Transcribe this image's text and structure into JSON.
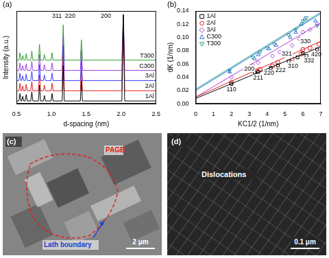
{
  "chart_data": [
    {
      "type": "line",
      "title": "(a)",
      "x_label": "d-spacing (nm)",
      "y_label": "Intensity (a.u.)",
      "x": [
        0.5,
        0.535,
        0.55,
        0.565,
        0.575,
        0.59,
        0.605,
        0.625,
        0.64,
        0.655,
        0.705,
        0.72,
        0.735,
        0.815,
        0.83,
        0.845,
        0.885,
        0.9,
        0.915,
        0.995,
        1.01,
        1.025,
        1.155,
        1.17,
        1.185,
        1.415,
        1.43,
        1.445,
        2.01,
        2.03,
        2.05,
        2.5
      ],
      "series": [
        {
          "name": "1Al",
          "color": "#000000",
          "values": [
            0.03,
            0.03,
            0.11,
            0.03,
            0.03,
            0.08,
            0.03,
            0.03,
            0.1,
            0.03,
            0.03,
            0.13,
            0.03,
            0.03,
            0.2,
            0.03,
            0.03,
            0.09,
            0.03,
            0.03,
            0.11,
            0.03,
            0.03,
            0.41,
            0.03,
            0.03,
            0.25,
            0.03,
            0.03,
            0.96,
            0.03,
            0.03
          ]
        },
        {
          "name": "2Al",
          "color": "#e41a1c",
          "values": [
            0.14,
            0.14,
            0.22,
            0.14,
            0.14,
            0.19,
            0.14,
            0.14,
            0.21,
            0.14,
            0.14,
            0.24,
            0.14,
            0.14,
            0.31,
            0.14,
            0.14,
            0.2,
            0.14,
            0.14,
            0.22,
            0.14,
            0.14,
            0.52,
            0.14,
            0.14,
            0.36,
            0.14,
            0.14,
            0.96,
            0.14,
            0.14
          ]
        },
        {
          "name": "3Al",
          "color": "#3a3aff",
          "values": [
            0.25,
            0.25,
            0.33,
            0.25,
            0.25,
            0.3,
            0.25,
            0.25,
            0.32,
            0.25,
            0.25,
            0.35,
            0.25,
            0.25,
            0.42,
            0.25,
            0.25,
            0.31,
            0.25,
            0.25,
            0.33,
            0.25,
            0.25,
            0.63,
            0.25,
            0.25,
            0.47,
            0.25,
            0.25,
            0.96,
            0.25,
            0.25
          ]
        },
        {
          "name": "C300",
          "color": "#a040e0",
          "values": [
            0.36,
            0.36,
            0.44,
            0.36,
            0.36,
            0.41,
            0.36,
            0.36,
            0.43,
            0.36,
            0.36,
            0.46,
            0.36,
            0.36,
            0.53,
            0.36,
            0.36,
            0.42,
            0.36,
            0.36,
            0.44,
            0.36,
            0.36,
            0.74,
            0.36,
            0.36,
            0.58,
            0.36,
            0.36,
            0.96,
            0.36,
            0.36
          ]
        },
        {
          "name": "T300",
          "color": "#2ca02c",
          "values": [
            0.47,
            0.47,
            0.55,
            0.47,
            0.47,
            0.52,
            0.47,
            0.47,
            0.54,
            0.47,
            0.47,
            0.57,
            0.47,
            0.47,
            0.64,
            0.47,
            0.47,
            0.53,
            0.47,
            0.47,
            0.55,
            0.47,
            0.47,
            0.85,
            0.47,
            0.47,
            0.69,
            0.47,
            0.47,
            0.96,
            0.47,
            0.47
          ]
        }
      ],
      "annotations": [
        {
          "text": "311",
          "x": 1.08
        },
        {
          "text": "220",
          "x": 1.27
        },
        {
          "text": "200",
          "x": 1.78
        }
      ],
      "xlim": [
        0.5,
        2.5
      ],
      "xticks": [
        0.5,
        {
          "value": 1,
          "label": "1.0"
        },
        1.5,
        {
          "value": 2,
          "label": "2.0"
        },
        2.5
      ],
      "ylim": [
        0,
        1
      ],
      "grid": false,
      "tick_labels": "x"
    },
    {
      "type": "scatter",
      "title": "(b)",
      "x_label": "KC1/2 (1/nm)",
      "y_label": "dK (1/nm)",
      "series": [
        {
          "name": "1Al",
          "color": "#000000",
          "marker": "square",
          "x": [
            2.0,
            3.3,
            3.5,
            4.2,
            4.6,
            5.2,
            5.7,
            6.0,
            6.2,
            6.8
          ],
          "values": [
            0.03,
            0.047,
            0.048,
            0.054,
            0.058,
            0.064,
            0.07,
            0.076,
            0.072,
            0.082
          ],
          "fit": {
            "x": [
              0,
              7
            ],
            "values": [
              0.008,
              0.086
            ]
          }
        },
        {
          "name": "2Al",
          "color": "#e41a1c",
          "marker": "circle",
          "x": [
            2.0,
            3.4,
            3.6,
            4.3,
            4.6,
            5.4,
            5.9,
            6.0,
            6.4,
            6.9
          ],
          "values": [
            0.032,
            0.05,
            0.052,
            0.057,
            0.062,
            0.068,
            0.075,
            0.082,
            0.084,
            0.09
          ],
          "fit": {
            "x": [
              0,
              7
            ],
            "values": [
              0.01,
              0.094
            ]
          }
        },
        {
          "name": "3Al",
          "color": "#b040d0",
          "marker": "diamond",
          "x": [
            2.0,
            3.2,
            3.5,
            4.3,
            4.7,
            5.4,
            5.8,
            6.0,
            6.4,
            6.8
          ],
          "values": [
            0.04,
            0.058,
            0.062,
            0.072,
            0.078,
            0.088,
            0.098,
            0.108,
            0.112,
            0.12
          ],
          "fit": {
            "x": [
              0,
              7
            ],
            "values": [
              0.01,
              0.122
            ]
          }
        },
        {
          "name": "C300",
          "color": "#2a6fd6",
          "marker": "triangle",
          "x": [
            1.9,
            3.3,
            3.5,
            4.1,
            4.5,
            5.3,
            5.6,
            5.9,
            6.1,
            6.7
          ],
          "values": [
            0.048,
            0.068,
            0.074,
            0.083,
            0.088,
            0.1,
            0.108,
            0.12,
            0.128,
            0.125
          ],
          "fit": {
            "x": [
              0,
              7
            ],
            "values": [
              0.02,
              0.136
            ]
          }
        },
        {
          "name": "T300",
          "color": "#1a9e8a",
          "marker": "triangle-down",
          "x": [
            1.9,
            3.2,
            3.6,
            4.0,
            4.4,
            5.2,
            5.6,
            6.0,
            6.2,
            6.8
          ],
          "values": [
            0.05,
            0.07,
            0.078,
            0.084,
            0.09,
            0.104,
            0.112,
            0.125,
            0.13,
            0.118
          ],
          "fit": {
            "x": [
              0,
              7
            ],
            "values": [
              0.022,
              0.138
            ]
          }
        }
      ],
      "annotations": [
        {
          "text": "110",
          "x": 2.0,
          "y": 0.021
        },
        {
          "text": "200",
          "x": 3.0,
          "y": 0.053
        },
        {
          "text": "211",
          "x": 3.5,
          "y": 0.039
        },
        {
          "text": "220",
          "x": 4.1,
          "y": 0.046
        },
        {
          "text": "222",
          "x": 4.75,
          "y": 0.05
        },
        {
          "text": "310",
          "x": 5.45,
          "y": 0.057
        },
        {
          "text": "321",
          "x": 5.1,
          "y": 0.075
        },
        {
          "text": "330",
          "x": 6.15,
          "y": 0.094
        },
        {
          "text": "332",
          "x": 6.35,
          "y": 0.065
        },
        {
          "text": "420",
          "x": 6.75,
          "y": 0.074
        }
      ],
      "xlim": [
        0,
        7
      ],
      "xticks": [
        0,
        1,
        2,
        3,
        4,
        5,
        6,
        7
      ],
      "ylim": [
        0,
        0.14
      ],
      "yticks": [
        {
          "value": 0,
          "label": "0.00"
        },
        0.02,
        0.04,
        0.06,
        0.08,
        {
          "value": 0.1,
          "label": "0.10"
        },
        0.12,
        0.14
      ],
      "grid": false,
      "legend": "upper left"
    }
  ],
  "images": [
    {
      "title": "(c)",
      "annotations": [
        {
          "text": "PAGB",
          "color": "#e02020"
        },
        {
          "text": "Lath boundary",
          "color": "#1f3fd0"
        }
      ],
      "scale_bar": "2 μm"
    },
    {
      "title": "(d)",
      "annotations": [
        {
          "text": "Dislocations",
          "color": "#ffffff"
        }
      ],
      "scale_bar": "0.1 μm"
    }
  ]
}
